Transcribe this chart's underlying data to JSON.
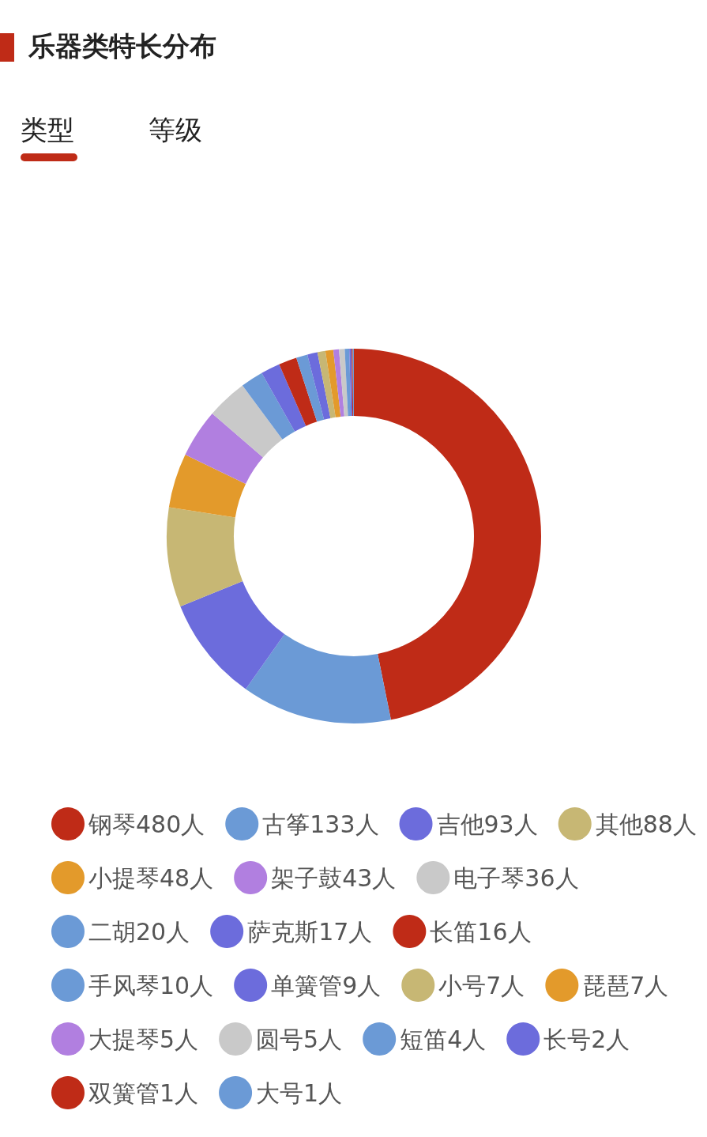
{
  "chart_data": {
    "type": "donut",
    "title": "乐器类特长分布",
    "annotations": [
      "类型",
      "等级"
    ],
    "categories": [
      "钢琴480人",
      "古筝133人",
      "吉他93人",
      "其他88人",
      "小提琴48人",
      "架子鼓43人",
      "电子琴36人",
      "二胡20人",
      "萨克斯17人",
      "长笛16人",
      "手风琴10人",
      "单簧管9人",
      "小号7人",
      "琵琶7人",
      "大提琴5人",
      "圆号5人",
      "短笛4人",
      "长号2人",
      "双簧管1人",
      "大号1人"
    ],
    "values": [
      480,
      133,
      93,
      88,
      48,
      43,
      36,
      20,
      17,
      16,
      10,
      9,
      7,
      7,
      5,
      5,
      4,
      2,
      1,
      1
    ],
    "colors": [
      "#bf2b17",
      "#6b9ad6",
      "#6c6cdc",
      "#c7b774",
      "#e39a2b",
      "#b17fe0",
      "#c9c9c9",
      "#6b9ad6",
      "#6c6cdc",
      "#bf2b17",
      "#6b9ad6",
      "#6c6cdc",
      "#c7b774",
      "#e39a2b",
      "#b17fe0",
      "#c9c9c9",
      "#6b9ad6",
      "#6c6cdc",
      "#bf2b17",
      "#6b9ad6"
    ],
    "legend": "bottom"
  }
}
